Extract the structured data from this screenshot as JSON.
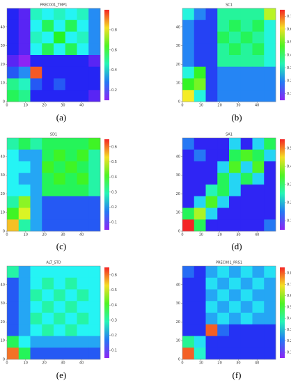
{
  "chart_data": [
    {
      "type": "heatmap",
      "label": "(a)",
      "title": "PREC001_TMP1",
      "colormap": "rainbow",
      "xlim": [
        0,
        50
      ],
      "ylim": [
        0,
        50
      ],
      "xticks": [
        0,
        10,
        20,
        30,
        40
      ],
      "yticks": [
        0,
        10,
        20,
        30,
        40
      ],
      "zlim": [
        0.1,
        1
      ],
      "zticks": [
        0.2,
        0.4,
        0.6,
        0.8
      ],
      "matrix": [
        [
          0.2,
          0.15,
          0.45,
          0.4,
          0.45,
          0.4,
          0.45,
          0.3
        ],
        [
          0.2,
          0.15,
          0.4,
          0.55,
          0.4,
          0.55,
          0.4,
          0.3
        ],
        [
          0.2,
          0.15,
          0.45,
          0.4,
          0.6,
          0.4,
          0.45,
          0.3
        ],
        [
          0.2,
          0.15,
          0.4,
          0.55,
          0.4,
          0.55,
          0.4,
          0.3
        ],
        [
          0.15,
          0.1,
          0.2,
          0.2,
          0.2,
          0.2,
          0.2,
          0.15
        ],
        [
          0.25,
          0.3,
          0.95,
          0.2,
          0.2,
          0.2,
          0.2,
          0.2
        ],
        [
          0.5,
          0.45,
          0.25,
          0.2,
          0.25,
          0.2,
          0.2,
          0.2
        ],
        [
          0.55,
          0.5,
          0.2,
          0.2,
          0.2,
          0.2,
          0.2,
          0.15
        ]
      ]
    },
    {
      "type": "heatmap",
      "label": "(b)",
      "title": "SC1",
      "colormap": "rainbow",
      "xlim": [
        0,
        50
      ],
      "ylim": [
        0,
        50
      ],
      "xticks": [
        0,
        10,
        20,
        30,
        40
      ],
      "yticks": [
        0,
        10,
        20,
        30,
        40
      ],
      "zlim": [
        0.05,
        0.75
      ],
      "zticks": [
        0.1,
        0.2,
        0.3,
        0.4,
        0.5,
        0.6,
        0.7
      ],
      "matrix": [
        [
          0.3,
          0.2,
          0.15,
          0.35,
          0.35,
          0.35,
          0.35,
          0.55
        ],
        [
          0.2,
          0.15,
          0.15,
          0.35,
          0.4,
          0.35,
          0.4,
          0.3
        ],
        [
          0.2,
          0.15,
          0.15,
          0.4,
          0.35,
          0.4,
          0.35,
          0.3
        ],
        [
          0.2,
          0.15,
          0.15,
          0.35,
          0.4,
          0.35,
          0.4,
          0.3
        ],
        [
          0.2,
          0.15,
          0.15,
          0.35,
          0.35,
          0.35,
          0.35,
          0.3
        ],
        [
          0.3,
          0.45,
          0.15,
          0.2,
          0.2,
          0.2,
          0.2,
          0.2
        ],
        [
          0.45,
          0.5,
          0.15,
          0.2,
          0.2,
          0.2,
          0.2,
          0.2
        ],
        [
          0.6,
          0.3,
          0.15,
          0.2,
          0.2,
          0.2,
          0.2,
          0.2
        ]
      ]
    },
    {
      "type": "heatmap",
      "label": "(c)",
      "title": "SD1",
      "colormap": "rainbow",
      "xlim": [
        0,
        50
      ],
      "ylim": [
        0,
        50
      ],
      "xticks": [
        0,
        10,
        20,
        30,
        40
      ],
      "yticks": [
        0,
        10,
        20,
        30,
        40
      ],
      "zlim": [
        0.05,
        0.65
      ],
      "zticks": [
        0.1,
        0.2,
        0.3,
        0.4,
        0.5,
        0.6
      ],
      "matrix": [
        [
          0.3,
          0.35,
          0.3,
          0.35,
          0.35,
          0.35,
          0.35,
          0.4
        ],
        [
          0.25,
          0.2,
          0.2,
          0.35,
          0.4,
          0.35,
          0.4,
          0.3
        ],
        [
          0.25,
          0.25,
          0.2,
          0.4,
          0.35,
          0.4,
          0.35,
          0.3
        ],
        [
          0.25,
          0.2,
          0.2,
          0.35,
          0.4,
          0.35,
          0.4,
          0.3
        ],
        [
          0.25,
          0.25,
          0.2,
          0.35,
          0.35,
          0.35,
          0.35,
          0.3
        ],
        [
          0.3,
          0.45,
          0.2,
          0.15,
          0.15,
          0.15,
          0.15,
          0.15
        ],
        [
          0.4,
          0.5,
          0.2,
          0.15,
          0.15,
          0.15,
          0.15,
          0.15
        ],
        [
          0.55,
          0.3,
          0.2,
          0.15,
          0.15,
          0.15,
          0.15,
          0.15
        ]
      ]
    },
    {
      "type": "heatmap",
      "label": "(d)",
      "title": "SA1",
      "colormap": "rainbow",
      "xlim": [
        0,
        50
      ],
      "ylim": [
        0,
        50
      ],
      "xticks": [
        0,
        10,
        20,
        30,
        40
      ],
      "yticks": [
        0,
        10,
        20,
        30,
        40
      ],
      "zlim": [
        0.05,
        0.55
      ],
      "zticks": [
        0.1,
        0.2,
        0.3,
        0.4,
        0.5
      ],
      "matrix": [
        [
          0.15,
          0.1,
          0.1,
          0.1,
          0.2,
          0.1,
          0.2,
          0.3
        ],
        [
          0.1,
          0.15,
          0.1,
          0.1,
          0.3,
          0.35,
          0.3,
          0.2
        ],
        [
          0.1,
          0.1,
          0.1,
          0.2,
          0.35,
          0.2,
          0.35,
          0.1
        ],
        [
          0.1,
          0.1,
          0.1,
          0.3,
          0.2,
          0.3,
          0.2,
          0.1
        ],
        [
          0.1,
          0.1,
          0.25,
          0.3,
          0.2,
          0.1,
          0.1,
          0.1
        ],
        [
          0.1,
          0.2,
          0.35,
          0.2,
          0.1,
          0.1,
          0.1,
          0.1
        ],
        [
          0.3,
          0.4,
          0.2,
          0.1,
          0.1,
          0.1,
          0.1,
          0.1
        ],
        [
          0.55,
          0.3,
          0.1,
          0.1,
          0.1,
          0.1,
          0.1,
          0.15
        ]
      ]
    },
    {
      "type": "heatmap",
      "label": "(e)",
      "title": "ALT_STD",
      "colormap": "rainbow",
      "xlim": [
        0,
        50
      ],
      "ylim": [
        0,
        50
      ],
      "xticks": [
        0,
        10,
        20,
        30,
        40
      ],
      "yticks": [
        0,
        10,
        20,
        30,
        40
      ],
      "zlim": [
        0.05,
        0.65
      ],
      "zticks": [
        0.1,
        0.2,
        0.3,
        0.4,
        0.5,
        0.6
      ],
      "matrix": [
        [
          0.3,
          0.2,
          0.25,
          0.25,
          0.25,
          0.25,
          0.25,
          0.25
        ],
        [
          0.15,
          0.2,
          0.25,
          0.3,
          0.25,
          0.3,
          0.25,
          0.25
        ],
        [
          0.15,
          0.2,
          0.3,
          0.25,
          0.3,
          0.25,
          0.3,
          0.25
        ],
        [
          0.15,
          0.2,
          0.25,
          0.3,
          0.25,
          0.3,
          0.25,
          0.25
        ],
        [
          0.15,
          0.2,
          0.3,
          0.25,
          0.3,
          0.25,
          0.3,
          0.25
        ],
        [
          0.15,
          0.2,
          0.25,
          0.3,
          0.25,
          0.3,
          0.25,
          0.25
        ],
        [
          0.35,
          0.25,
          0.2,
          0.2,
          0.2,
          0.2,
          0.2,
          0.2
        ],
        [
          0.6,
          0.35,
          0.15,
          0.15,
          0.15,
          0.15,
          0.15,
          0.15
        ]
      ]
    },
    {
      "type": "heatmap",
      "label": "(f)",
      "title": "PREC001_PRS1",
      "colormap": "rainbow",
      "xlim": [
        0,
        50
      ],
      "ylim": [
        0,
        50
      ],
      "xticks": [
        0,
        10,
        20,
        30,
        40
      ],
      "yticks": [
        0,
        10,
        20,
        30,
        40
      ],
      "zlim": [
        0.05,
        0.85
      ],
      "zticks": [
        0.1,
        0.2,
        0.3,
        0.4,
        0.5,
        0.6,
        0.7,
        0.8
      ],
      "matrix": [
        [
          0.2,
          0.15,
          0.25,
          0.3,
          0.25,
          0.3,
          0.25,
          0.3
        ],
        [
          0.15,
          0.15,
          0.3,
          0.25,
          0.3,
          0.25,
          0.3,
          0.25
        ],
        [
          0.15,
          0.15,
          0.25,
          0.3,
          0.25,
          0.3,
          0.25,
          0.25
        ],
        [
          0.15,
          0.15,
          0.3,
          0.25,
          0.3,
          0.25,
          0.3,
          0.25
        ],
        [
          0.15,
          0.15,
          0.25,
          0.3,
          0.25,
          0.3,
          0.25,
          0.25
        ],
        [
          0.15,
          0.15,
          0.8,
          0.2,
          0.15,
          0.15,
          0.15,
          0.15
        ],
        [
          0.4,
          0.3,
          0.15,
          0.15,
          0.15,
          0.15,
          0.15,
          0.15
        ],
        [
          0.8,
          0.35,
          0.15,
          0.15,
          0.15,
          0.15,
          0.15,
          0.15
        ]
      ]
    }
  ]
}
